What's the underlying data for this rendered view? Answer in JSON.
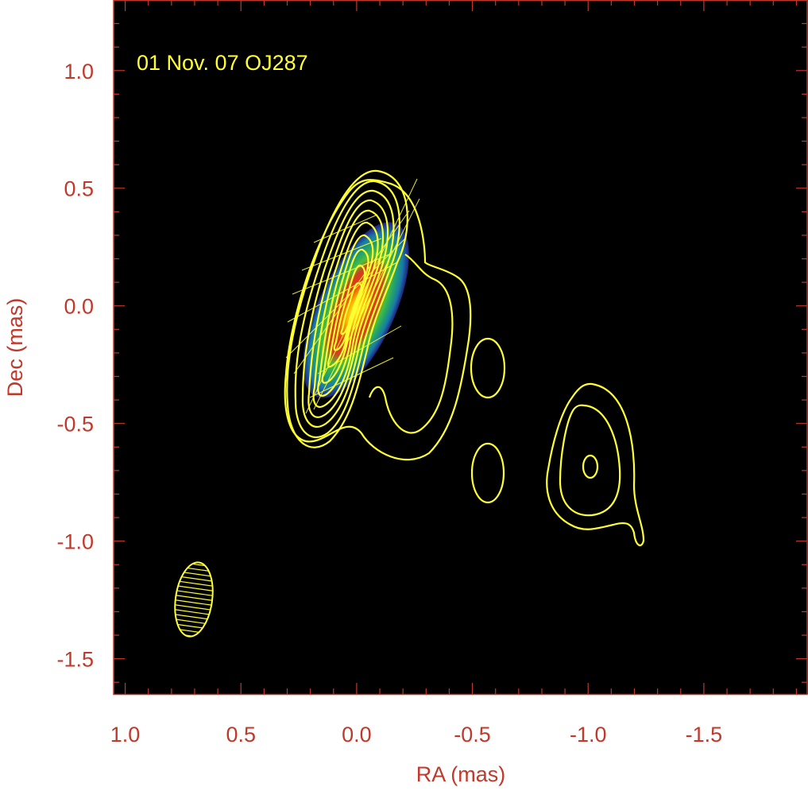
{
  "colors": {
    "axis": "#c0392b",
    "background": "#000000",
    "contour": "#ffff33",
    "annotation": "#ffff33"
  },
  "chart_data": {
    "type": "heatmap",
    "title": "",
    "annotation": "01 Nov. 07  OJ287",
    "xlabel": "RA (mas)",
    "ylabel": "Dec (mas)",
    "xlim": [
      1.05,
      -1.95
    ],
    "ylim": [
      -1.65,
      1.3
    ],
    "x_reversed": true,
    "xticks": [
      1.0,
      0.5,
      0.0,
      -0.5,
      -1.0,
      -1.5
    ],
    "xtick_labels": [
      "1.0",
      "0.5",
      "0.0",
      "-0.5",
      "-1.0",
      "-1.5"
    ],
    "yticks": [
      1.0,
      0.5,
      0.0,
      -0.5,
      -1.0,
      -1.5
    ],
    "ytick_labels": [
      "1.0",
      "0.5",
      "0.0",
      "-0.5",
      "-1.0",
      "-1.5"
    ],
    "grid": false,
    "colormap": [
      "#202080",
      "#1a7aa8",
      "#20a070",
      "#4cbf3a",
      "#d04020",
      "#e23a10",
      "#ffb000",
      "#ffff30"
    ],
    "core": {
      "ra": 0.0,
      "dec": 0.0,
      "major_axis_pa_deg": 25
    },
    "beam": {
      "ra": 0.7,
      "dec": -1.27,
      "major_mas": 0.33,
      "minor_mas": 0.16,
      "pa_deg": 8
    },
    "contour_components": [
      {
        "label": "core",
        "ra": 0.0,
        "dec": 0.0,
        "levels": 10
      },
      {
        "label": "knot",
        "ra": -0.6,
        "dec": -0.25,
        "levels": 1
      },
      {
        "label": "knot",
        "ra": -0.6,
        "dec": -0.68,
        "levels": 1
      },
      {
        "label": "knot",
        "ra": -1.0,
        "dec": -0.68,
        "levels": 3
      }
    ]
  }
}
